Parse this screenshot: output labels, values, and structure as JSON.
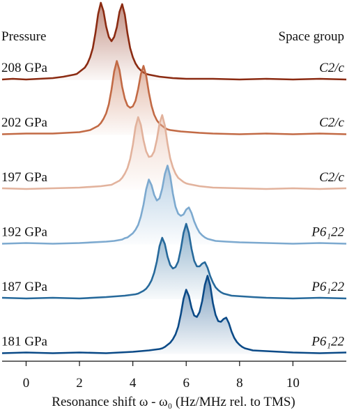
{
  "chart_data": {
    "type": "line",
    "left_header": "Pressure",
    "right_header": "Space group",
    "xlabel": "Resonance shift ω - ω₀ (Hz/MHz rel. to TMS)",
    "xlim": [
      -0.9,
      12
    ],
    "xticks": [
      0,
      2,
      4,
      6,
      8,
      10
    ],
    "series": [
      {
        "name": "208 GPa",
        "label": "C2/c",
        "color": "#8b2b12",
        "x": [
          -0.9,
          -0.5,
          0,
          0.5,
          1,
          1.4,
          1.8,
          1.9,
          2,
          2.1,
          2.2,
          2.3,
          2.4,
          2.5,
          2.6,
          2.7,
          2.8,
          2.9,
          3,
          3.1,
          3.2,
          3.3,
          3.4,
          3.5,
          3.6,
          3.7,
          3.8,
          3.9,
          4,
          4.1,
          4.2,
          4.3,
          4.4,
          4.5,
          4.6,
          5,
          5.5,
          6,
          7,
          8,
          9,
          10,
          11,
          12
        ],
        "values": [
          0.01,
          0.02,
          0.01,
          0.02,
          0.03,
          0.05,
          0.08,
          0.09,
          0.12,
          0.15,
          0.18,
          0.24,
          0.33,
          0.46,
          0.68,
          0.95,
          1.11,
          0.99,
          0.77,
          0.62,
          0.56,
          0.62,
          0.76,
          0.98,
          1.09,
          0.94,
          0.67,
          0.46,
          0.33,
          0.24,
          0.18,
          0.14,
          0.11,
          0.09,
          0.08,
          0.05,
          0.03,
          0.02,
          0.02,
          0.01,
          0.02,
          0.01,
          0.02,
          0.01
        ]
      },
      {
        "name": "202 GPa",
        "label": "C2/c",
        "color": "#c26a45",
        "x": [
          -0.9,
          0,
          1,
          2,
          2.4,
          2.5,
          2.6,
          2.7,
          2.8,
          2.9,
          3,
          3.1,
          3.2,
          3.3,
          3.4,
          3.5,
          3.6,
          3.7,
          3.8,
          3.9,
          4,
          4.1,
          4.2,
          4.3,
          4.4,
          4.5,
          4.6,
          4.7,
          4.8,
          4.9,
          5,
          5.1,
          5.2,
          5.3,
          5.4,
          5.8,
          6.5,
          7,
          8,
          9,
          10,
          11,
          12
        ],
        "values": [
          0.01,
          0.02,
          0.02,
          0.04,
          0.07,
          0.09,
          0.11,
          0.13,
          0.17,
          0.23,
          0.31,
          0.44,
          0.65,
          0.91,
          1.06,
          0.93,
          0.69,
          0.52,
          0.42,
          0.39,
          0.41,
          0.49,
          0.66,
          0.87,
          0.99,
          0.85,
          0.61,
          0.42,
          0.29,
          0.21,
          0.16,
          0.13,
          0.1,
          0.08,
          0.07,
          0.05,
          0.03,
          0.02,
          0.01,
          0.02,
          0.01,
          0.02,
          0.01
        ]
      },
      {
        "name": "197 GPa",
        "label": "C2/c",
        "color": "#e2b29c",
        "x": [
          -0.9,
          0,
          1,
          2,
          2.8,
          3.2,
          3.3,
          3.4,
          3.5,
          3.6,
          3.7,
          3.8,
          3.9,
          4,
          4.1,
          4.2,
          4.3,
          4.4,
          4.5,
          4.6,
          4.7,
          4.8,
          4.9,
          5,
          5.1,
          5.2,
          5.3,
          5.4,
          5.5,
          5.6,
          5.7,
          5.8,
          5.9,
          6,
          6.1,
          6.5,
          7,
          8,
          9,
          10,
          11,
          12
        ],
        "values": [
          0.02,
          0.01,
          0.02,
          0.03,
          0.05,
          0.07,
          0.09,
          0.11,
          0.13,
          0.17,
          0.23,
          0.31,
          0.44,
          0.64,
          0.9,
          1.04,
          0.93,
          0.71,
          0.55,
          0.47,
          0.48,
          0.55,
          0.72,
          0.95,
          1.07,
          0.92,
          0.66,
          0.45,
          0.32,
          0.23,
          0.17,
          0.14,
          0.11,
          0.09,
          0.08,
          0.05,
          0.03,
          0.02,
          0.01,
          0.02,
          0.01,
          0.02
        ]
      },
      {
        "name": "192 GPa",
        "label": "P6₁22",
        "color": "#7ca9cf",
        "x": [
          -0.9,
          0,
          1,
          2,
          3,
          3.3,
          3.6,
          3.7,
          3.8,
          3.9,
          4,
          4.1,
          4.2,
          4.3,
          4.4,
          4.5,
          4.6,
          4.7,
          4.8,
          4.9,
          5,
          5.1,
          5.2,
          5.3,
          5.4,
          5.5,
          5.6,
          5.7,
          5.8,
          5.9,
          6,
          6.1,
          6.2,
          6.3,
          6.4,
          6.5,
          6.6,
          6.7,
          6.8,
          6.9,
          7,
          7.1,
          7.5,
          8,
          9,
          10,
          11,
          12
        ],
        "values": [
          0.01,
          0.02,
          0.01,
          0.02,
          0.04,
          0.05,
          0.07,
          0.09,
          0.1,
          0.13,
          0.16,
          0.21,
          0.28,
          0.4,
          0.57,
          0.79,
          0.93,
          0.85,
          0.71,
          0.63,
          0.66,
          0.8,
          1.01,
          1.13,
          0.98,
          0.73,
          0.54,
          0.44,
          0.41,
          0.43,
          0.5,
          0.53,
          0.45,
          0.33,
          0.24,
          0.17,
          0.13,
          0.1,
          0.08,
          0.07,
          0.06,
          0.05,
          0.04,
          0.03,
          0.02,
          0.01,
          0.02,
          0.01
        ]
      },
      {
        "name": "187 GPa",
        "label": "P6₁22",
        "color": "#26699b",
        "x": [
          -0.9,
          0,
          1,
          2,
          3,
          3.7,
          4.1,
          4.2,
          4.3,
          4.4,
          4.5,
          4.6,
          4.7,
          4.8,
          4.9,
          5,
          5.1,
          5.2,
          5.3,
          5.4,
          5.5,
          5.6,
          5.7,
          5.8,
          5.9,
          6,
          6.1,
          6.2,
          6.3,
          6.4,
          6.5,
          6.6,
          6.7,
          6.8,
          6.9,
          7,
          7.1,
          7.2,
          7.3,
          7.4,
          7.5,
          7.6,
          7.7,
          8.1,
          8.5,
          9,
          10,
          11,
          12
        ],
        "values": [
          0.02,
          0.01,
          0.02,
          0.01,
          0.03,
          0.05,
          0.07,
          0.08,
          0.1,
          0.12,
          0.15,
          0.2,
          0.27,
          0.38,
          0.54,
          0.76,
          0.88,
          0.79,
          0.61,
          0.49,
          0.44,
          0.46,
          0.54,
          0.72,
          0.95,
          1.08,
          0.95,
          0.72,
          0.55,
          0.47,
          0.47,
          0.51,
          0.53,
          0.45,
          0.33,
          0.24,
          0.17,
          0.13,
          0.1,
          0.08,
          0.07,
          0.06,
          0.05,
          0.04,
          0.03,
          0.02,
          0.01,
          0.02,
          0.01
        ]
      },
      {
        "name": "181 GPa",
        "label": "P6₁22",
        "color": "#0b4a87",
        "x": [
          -0.9,
          0,
          1,
          2,
          3,
          4,
          4.6,
          5,
          5.1,
          5.2,
          5.3,
          5.4,
          5.5,
          5.6,
          5.7,
          5.8,
          5.9,
          6,
          6.1,
          6.2,
          6.3,
          6.4,
          6.5,
          6.6,
          6.7,
          6.8,
          6.9,
          7,
          7.1,
          7.2,
          7.3,
          7.4,
          7.5,
          7.6,
          7.7,
          7.8,
          7.9,
          8,
          8.1,
          8.2,
          8.3,
          8.4,
          8.5,
          9,
          10,
          11,
          12
        ],
        "values": [
          0.01,
          0.02,
          0.01,
          0.02,
          0.01,
          0.03,
          0.05,
          0.07,
          0.08,
          0.1,
          0.13,
          0.16,
          0.21,
          0.28,
          0.39,
          0.57,
          0.79,
          0.92,
          0.83,
          0.66,
          0.55,
          0.53,
          0.6,
          0.76,
          0.99,
          1.12,
          0.98,
          0.73,
          0.56,
          0.47,
          0.46,
          0.5,
          0.52,
          0.44,
          0.32,
          0.23,
          0.17,
          0.13,
          0.1,
          0.08,
          0.07,
          0.06,
          0.05,
          0.04,
          0.02,
          0.01,
          0.02
        ]
      }
    ]
  }
}
